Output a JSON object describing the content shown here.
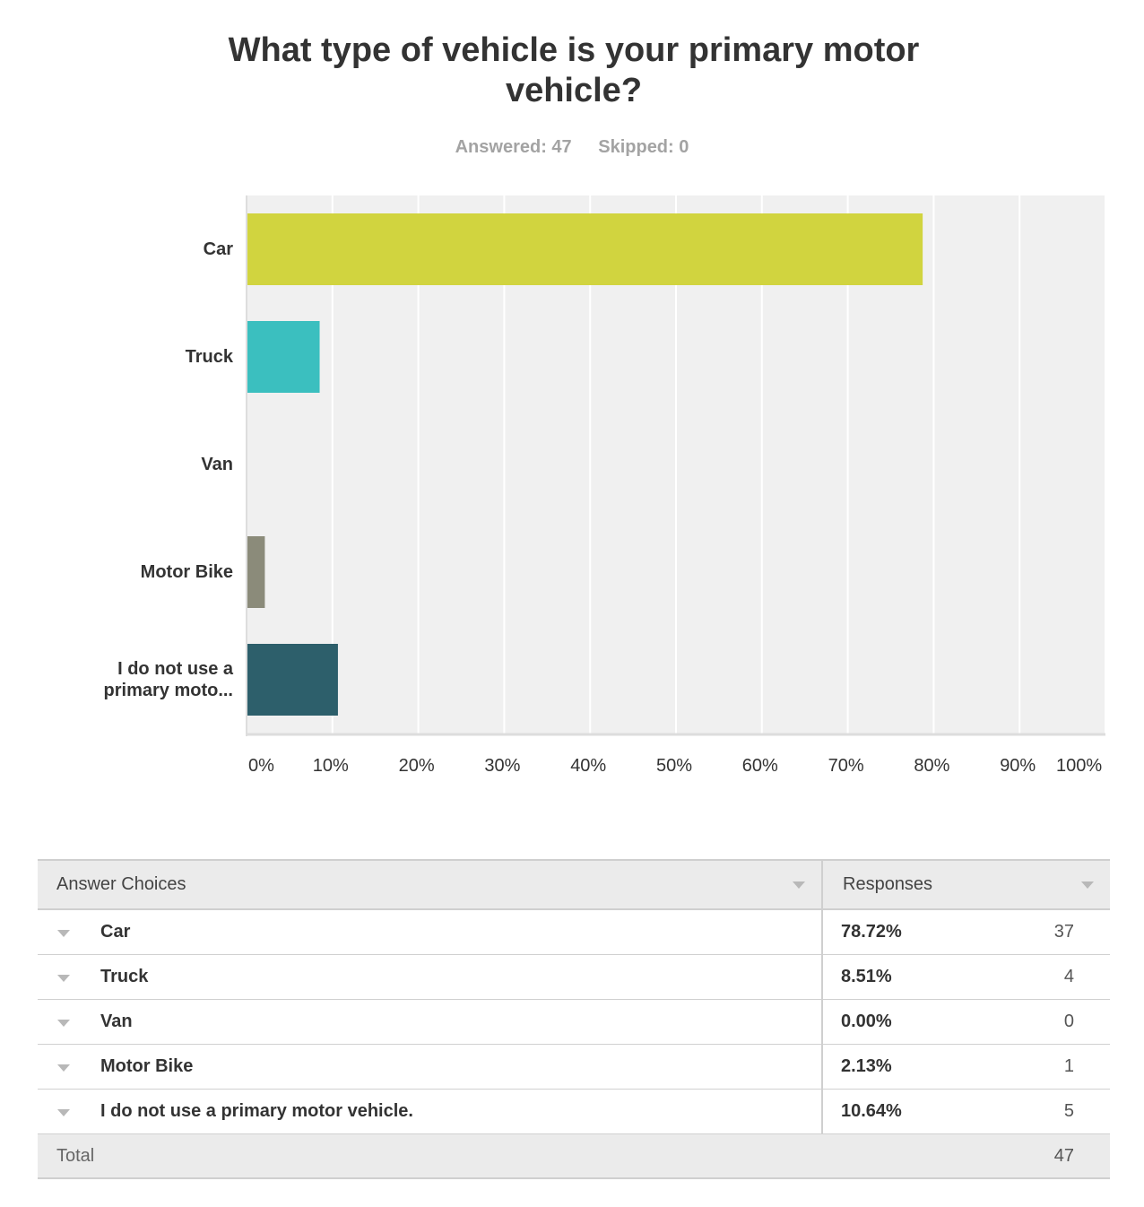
{
  "chart_data": {
    "type": "bar",
    "orientation": "horizontal",
    "title_lines": [
      "What type of vehicle is your primary motor",
      "vehicle?"
    ],
    "categories": [
      "Car",
      "Truck",
      "Van",
      "Motor Bike",
      "I do not use a primary moto..."
    ],
    "values": [
      78.72,
      8.51,
      0.0,
      2.13,
      10.64
    ],
    "colors": [
      "#d1d43f",
      "#3bbfbf",
      "#d1d43f",
      "#8b8b7a",
      "#2d5f6b"
    ],
    "xlim": [
      0,
      100
    ],
    "x_ticks": [
      "0%",
      "10%",
      "20%",
      "30%",
      "40%",
      "50%",
      "60%",
      "70%",
      "80%",
      "90%",
      "100%"
    ],
    "grid": true,
    "plot_background": "#f0f0f0"
  },
  "meta": {
    "answered": "Answered: 47",
    "skipped": "Skipped: 0"
  },
  "table": {
    "header": {
      "choices": "Answer Choices",
      "responses": "Responses"
    },
    "rows": [
      {
        "label": "Car",
        "percent": "78.72%",
        "count": "37"
      },
      {
        "label": "Truck",
        "percent": "8.51%",
        "count": "4"
      },
      {
        "label": "Van",
        "percent": "0.00%",
        "count": "0"
      },
      {
        "label": "Motor Bike",
        "percent": "2.13%",
        "count": "1"
      },
      {
        "label": "I do not use a primary motor vehicle.",
        "percent": "10.64%",
        "count": "5"
      }
    ],
    "total": {
      "label": "Total",
      "count": "47"
    }
  }
}
